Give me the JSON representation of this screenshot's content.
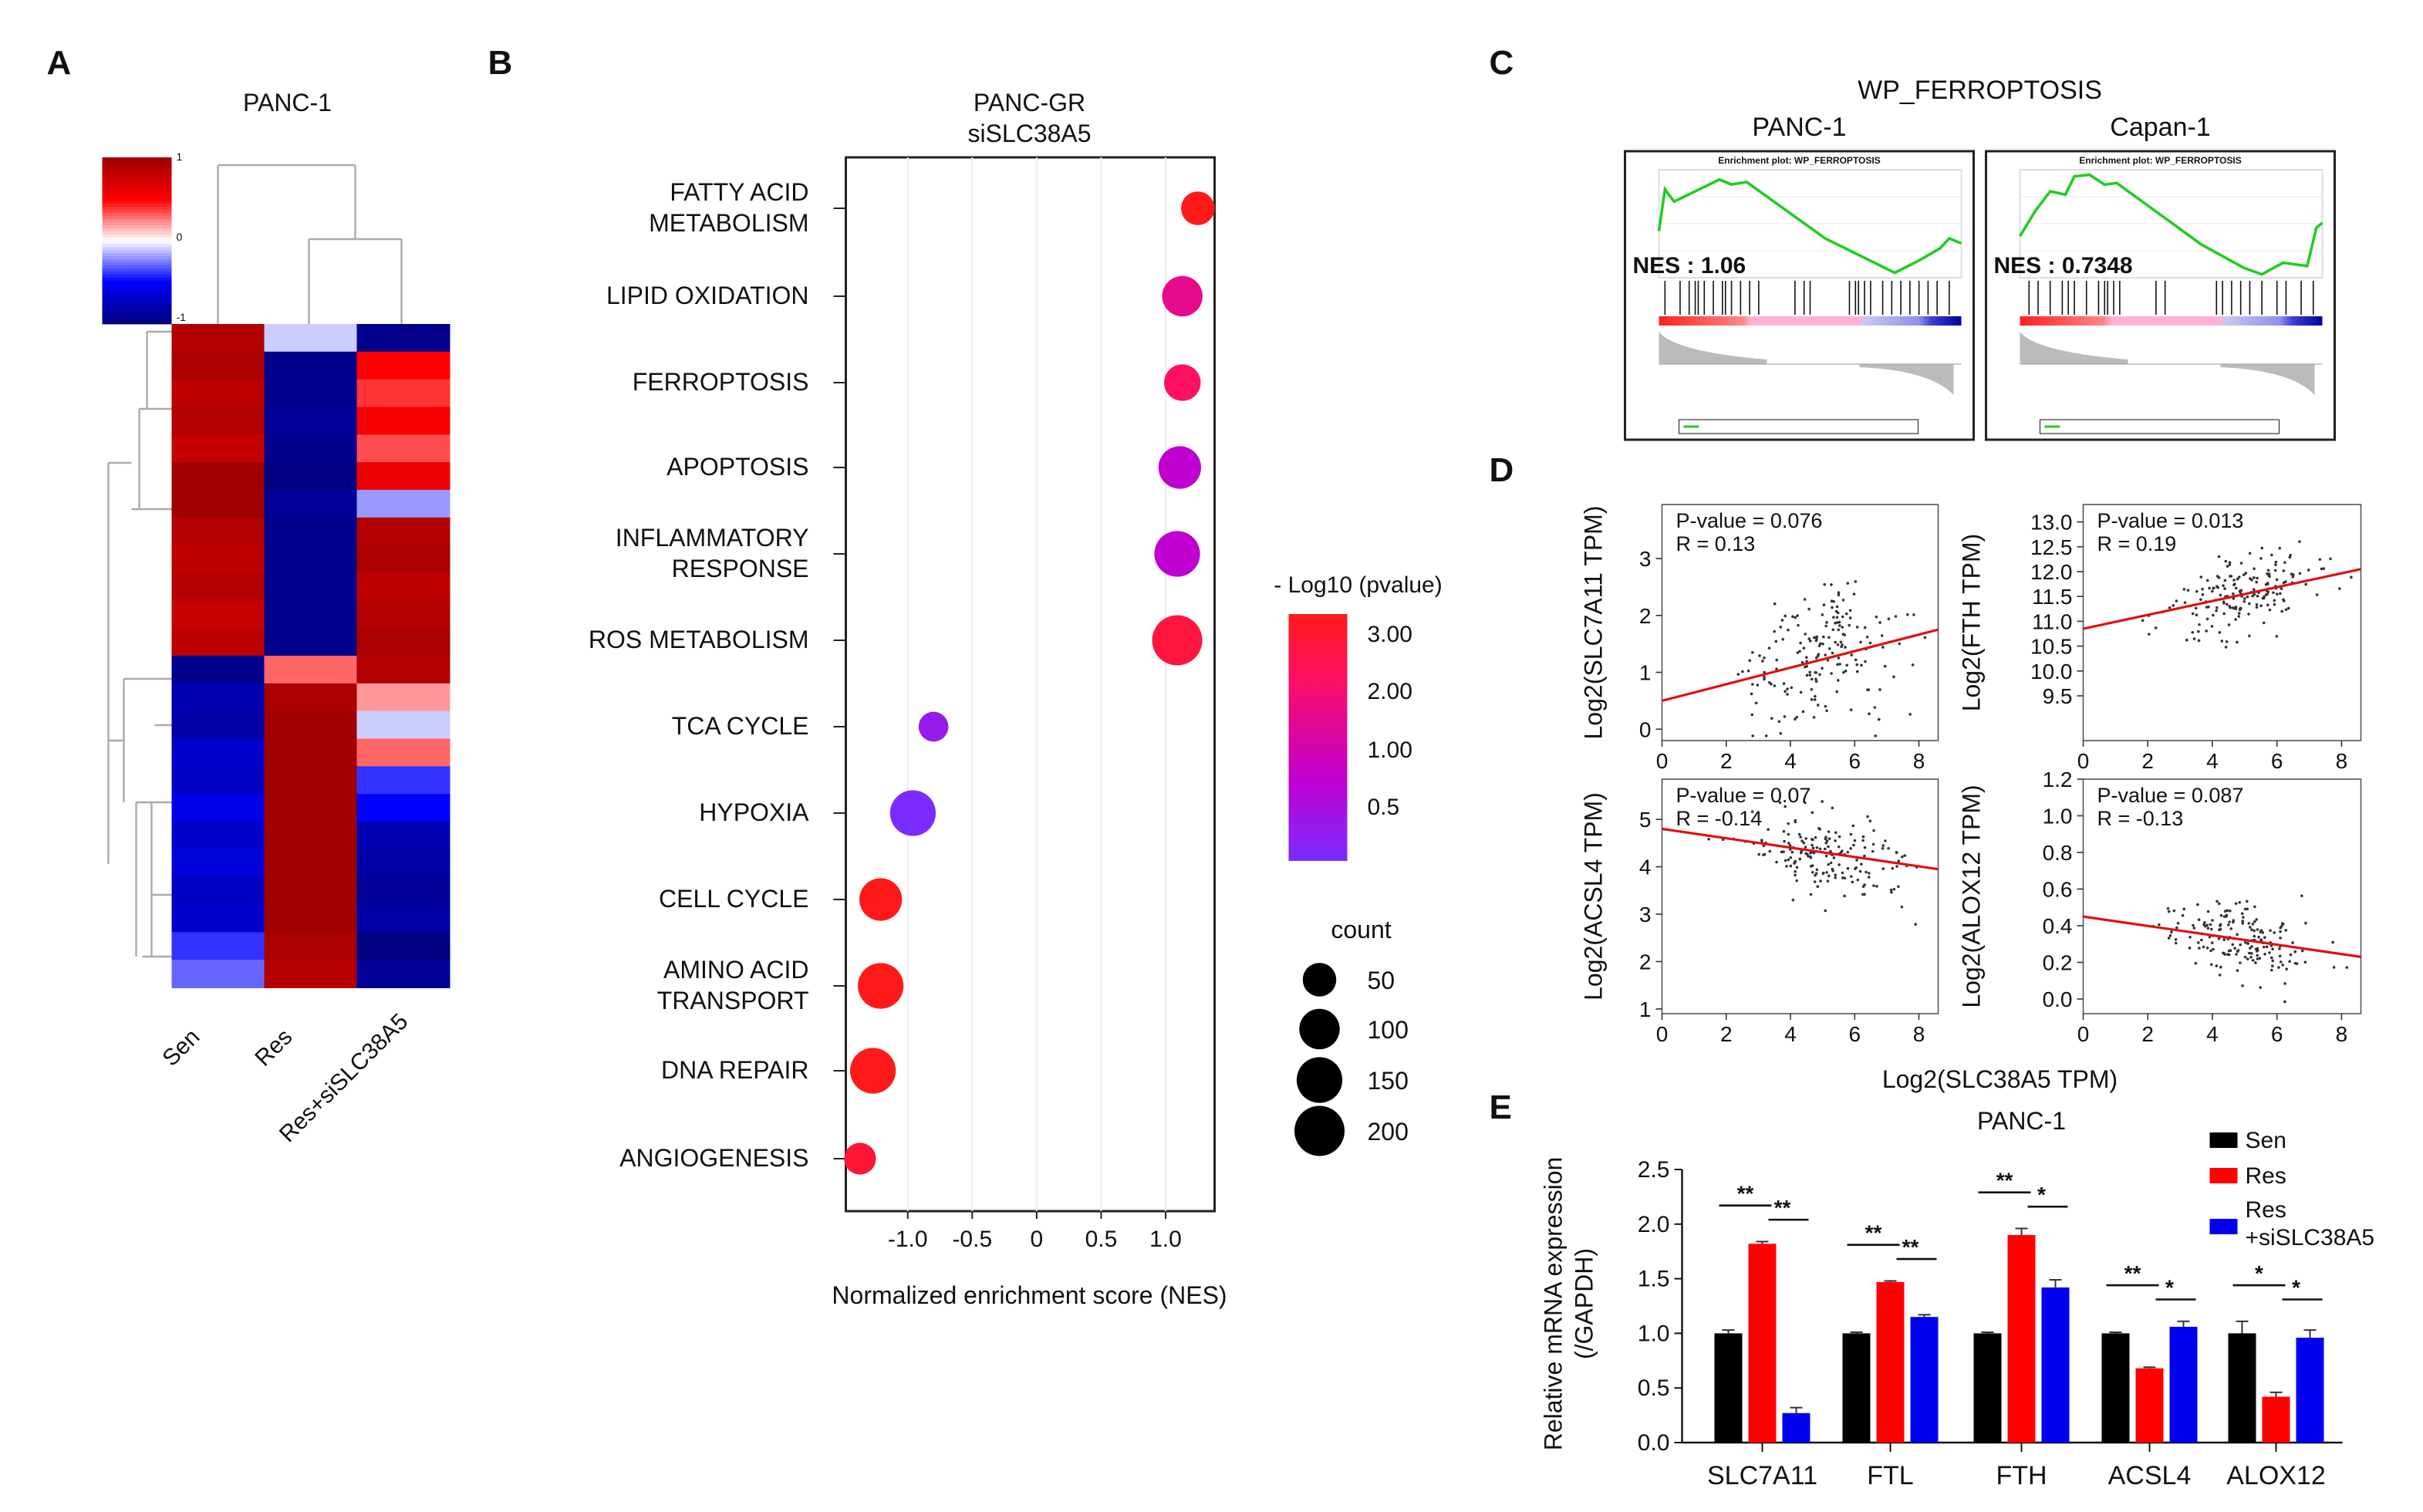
{
  "panel_letters": [
    "A",
    "B",
    "C",
    "D",
    "E"
  ],
  "chart_data": [
    {
      "panel": "A",
      "type": "heatmap",
      "title": "PANC-1",
      "columns": [
        "Sen",
        "Res",
        "Res+siSLC38A5"
      ],
      "colorbar_ticks": [
        "1",
        "0",
        "-1"
      ],
      "color_range": [
        -1,
        1
      ],
      "colors": {
        "low": "#000080",
        "mid_low": "#0000ff",
        "mid": "#ffffff",
        "mid_high": "#ff0000",
        "high": "#a00000"
      },
      "rows": [
        [
          0.9,
          -0.1,
          -0.95
        ],
        [
          0.95,
          -0.95,
          0.5
        ],
        [
          0.85,
          -0.95,
          0.4
        ],
        [
          0.9,
          -0.9,
          0.55
        ],
        [
          0.8,
          -0.95,
          0.35
        ],
        [
          1.0,
          -1.0,
          0.6
        ],
        [
          1.0,
          -0.9,
          -0.2
        ],
        [
          0.9,
          -0.95,
          0.9
        ],
        [
          0.85,
          -0.95,
          0.95
        ],
        [
          0.9,
          -0.95,
          0.85
        ],
        [
          0.8,
          -0.95,
          0.9
        ],
        [
          0.85,
          -0.95,
          0.95
        ],
        [
          -0.95,
          0.3,
          0.9
        ],
        [
          -0.8,
          0.95,
          0.2
        ],
        [
          -0.85,
          1.0,
          -0.1
        ],
        [
          -0.7,
          1.0,
          0.3
        ],
        [
          -0.75,
          1.0,
          -0.4
        ],
        [
          -0.6,
          1.0,
          -0.5
        ],
        [
          -0.7,
          1.0,
          -0.8
        ],
        [
          -0.65,
          1.0,
          -0.85
        ],
        [
          -0.75,
          1.0,
          -0.9
        ],
        [
          -0.7,
          1.0,
          -0.85
        ],
        [
          -0.4,
          0.95,
          -1.0
        ],
        [
          -0.3,
          0.9,
          -0.9
        ]
      ]
    },
    {
      "panel": "B",
      "type": "scatter",
      "title": "PANC-GR",
      "subtitle": "siSLC38A5",
      "xlabel": "Normalized enrichment score (NES)",
      "xticks": [
        -1.0,
        -0.5,
        0,
        0.5,
        1.0
      ],
      "xtick_labels": [
        "-1.0",
        "-0.5",
        "0",
        "0.5",
        "1.0"
      ],
      "xlim": [
        -1.48,
        1.38
      ],
      "color_legend_title": "- Log10 (pvalue)",
      "color_legend_labels": [
        "3.00",
        "2.00",
        "1.00",
        "0.5"
      ],
      "color_scale": [
        "#7b2bff",
        "#c000d0",
        "#ff1060",
        "#ff1a1a"
      ],
      "size_legend_title": "count",
      "size_legend": [
        50,
        100,
        150,
        200
      ],
      "points": [
        {
          "label": [
            "FATTY ACID",
            "METABOLISM"
          ],
          "nes": 1.25,
          "logp": 3.0,
          "count": 50
        },
        {
          "label": [
            "LIPID OXIDATION"
          ],
          "nes": 1.13,
          "logp": 1.6,
          "count": 100
        },
        {
          "label": [
            "FERROPTOSIS"
          ],
          "nes": 1.13,
          "logp": 2.0,
          "count": 70
        },
        {
          "label": [
            "APOPTOSIS"
          ],
          "nes": 1.11,
          "logp": 1.0,
          "count": 120
        },
        {
          "label": [
            "INFLAMMATORY",
            "RESPONSE"
          ],
          "nes": 1.09,
          "logp": 1.0,
          "count": 150
        },
        {
          "label": [
            "ROS METABOLISM"
          ],
          "nes": 1.09,
          "logp": 2.5,
          "count": 200
        },
        {
          "label": [
            "TCA CYCLE"
          ],
          "nes": -0.8,
          "logp": 0.5,
          "count": 30
        },
        {
          "label": [
            "HYPOXIA"
          ],
          "nes": -0.96,
          "logp": 0.2,
          "count": 150
        },
        {
          "label": [
            "CELL CYCLE"
          ],
          "nes": -1.21,
          "logp": 3.0,
          "count": 120
        },
        {
          "label": [
            "AMINO ACID",
            "TRANSPORT"
          ],
          "nes": -1.21,
          "logp": 3.0,
          "count": 150
        },
        {
          "label": [
            "DNA REPAIR"
          ],
          "nes": -1.27,
          "logp": 3.0,
          "count": 150
        },
        {
          "label": [
            "ANGIOGENESIS"
          ],
          "nes": -1.37,
          "logp": 2.6,
          "count": 40
        }
      ]
    },
    {
      "panel": "C",
      "type": "line",
      "title": "WP_FERROPTOSIS",
      "plots": [
        {
          "name": "PANC-1",
          "plot_title": "Enrichment plot: WP_FERROPTOSIS",
          "nes_text": "NES : 1.06",
          "ylim": [
            -0.14,
            0.3
          ],
          "curve": [
            [
              0,
              0.05
            ],
            [
              0.02,
              0.22
            ],
            [
              0.05,
              0.17
            ],
            [
              0.1,
              0.2
            ],
            [
              0.2,
              0.26
            ],
            [
              0.24,
              0.24
            ],
            [
              0.29,
              0.25
            ],
            [
              0.55,
              0.02
            ],
            [
              0.78,
              -0.12
            ],
            [
              0.86,
              -0.07
            ],
            [
              0.93,
              -0.02
            ],
            [
              0.96,
              0.02
            ],
            [
              1.0,
              0.0
            ]
          ],
          "hits": [
            0.02,
            0.07,
            0.1,
            0.12,
            0.13,
            0.15,
            0.18,
            0.21,
            0.22,
            0.24,
            0.27,
            0.3,
            0.33,
            0.45,
            0.48,
            0.5,
            0.63,
            0.65,
            0.66,
            0.68,
            0.7,
            0.74,
            0.77,
            0.8,
            0.83,
            0.86,
            0.89,
            0.92,
            0.96
          ]
        },
        {
          "name": "Capan-1",
          "plot_title": "Enrichment plot: WP_FERROPTOSIS",
          "nes_text": "NES : 0.7348",
          "ylim": [
            -0.3,
            0.35
          ],
          "curve": [
            [
              0,
              -0.05
            ],
            [
              0.05,
              0.1
            ],
            [
              0.1,
              0.22
            ],
            [
              0.15,
              0.2
            ],
            [
              0.18,
              0.31
            ],
            [
              0.23,
              0.32
            ],
            [
              0.28,
              0.26
            ],
            [
              0.32,
              0.27
            ],
            [
              0.6,
              -0.1
            ],
            [
              0.74,
              -0.24
            ],
            [
              0.8,
              -0.28
            ],
            [
              0.87,
              -0.21
            ],
            [
              0.95,
              -0.23
            ],
            [
              0.98,
              0.0
            ],
            [
              1.0,
              0.03
            ]
          ],
          "hits": [
            0.03,
            0.06,
            0.1,
            0.14,
            0.16,
            0.18,
            0.22,
            0.26,
            0.28,
            0.29,
            0.31,
            0.33,
            0.45,
            0.48,
            0.65,
            0.67,
            0.7,
            0.73,
            0.76,
            0.8,
            0.85,
            0.88,
            0.93,
            0.97
          ]
        }
      ]
    },
    {
      "panel": "D",
      "type": "scatter",
      "xlabel": "Log2(SLC38A5 TPM)",
      "xlim": [
        0,
        8.6
      ],
      "xticks": [
        0,
        2,
        4,
        6,
        8
      ],
      "plots": [
        {
          "ylabel": "Log2(SLC7A11 TPM)",
          "pvalue_text": "P-value = 0.076",
          "r_text": "R = 0.13",
          "ylim": [
            -0.2,
            3.95
          ],
          "yticks": [
            0,
            1,
            2,
            3
          ],
          "ytick_labels": [
            "0",
            "1",
            "2",
            "3"
          ],
          "fit": [
            [
              0,
              0.5
            ],
            [
              8.6,
              1.75
            ]
          ]
        },
        {
          "ylabel": "Log2(FTH TPM)",
          "pvalue_text": "P-value = 0.013",
          "r_text": "R = 0.19",
          "ylim": [
            8.6,
            13.35
          ],
          "yticks": [
            9.5,
            10,
            10.5,
            11,
            11.5,
            12,
            12.5,
            13
          ],
          "ytick_labels": [
            "9.5",
            "10.0",
            "10.5",
            "11.0",
            "11.5",
            "12.0",
            "12.5",
            "13.0"
          ],
          "fit": [
            [
              0,
              10.85
            ],
            [
              8.6,
              12.05
            ]
          ]
        },
        {
          "ylabel": "Log2(ACSL4 TPM)",
          "pvalue_text": "P-value = 0.07",
          "r_text": "R = -0.14",
          "ylim": [
            0.9,
            5.85
          ],
          "yticks": [
            1,
            2,
            3,
            4,
            5
          ],
          "ytick_labels": [
            "1",
            "2",
            "3",
            "4",
            "5"
          ],
          "fit": [
            [
              0,
              4.8
            ],
            [
              8.6,
              3.95
            ]
          ]
        },
        {
          "ylabel": "Log2(ALOX12 TPM)",
          "pvalue_text": "P-value = 0.087",
          "r_text": "R = -0.13",
          "ylim": [
            -0.08,
            1.2
          ],
          "yticks": [
            0,
            0.2,
            0.4,
            0.6,
            0.8,
            1.0,
            1.2
          ],
          "ytick_labels": [
            "0.0",
            "0.2",
            "0.4",
            "0.6",
            "0.8",
            "1.0",
            "1.2"
          ],
          "fit": [
            [
              0,
              0.45
            ],
            [
              8.6,
              0.23
            ]
          ]
        }
      ]
    },
    {
      "panel": "E",
      "type": "bar",
      "title": "PANC-1",
      "ylabel": [
        "Relative mRNA expression",
        "(/GAPDH)"
      ],
      "ylim": [
        0,
        2.5
      ],
      "yticks": [
        "0.0",
        "0.5",
        "1.0",
        "1.5",
        "2.0",
        "2.5"
      ],
      "categories": [
        "SLC7A11",
        "FTL",
        "FTH",
        "ACSL4",
        "ALOX12"
      ],
      "legend": [
        [
          "Sen"
        ],
        [
          "Res"
        ],
        [
          "Res",
          "+siSLC38A5"
        ]
      ],
      "series": [
        {
          "name": "Sen",
          "color": "#000000",
          "values": [
            1.0,
            1.0,
            1.0,
            1.0,
            1.0
          ],
          "errors": [
            0.03,
            0.01,
            0.01,
            0.01,
            0.11
          ]
        },
        {
          "name": "Res",
          "color": "#ff0000",
          "values": [
            1.82,
            1.47,
            1.9,
            0.68,
            0.42
          ],
          "errors": [
            0.02,
            0.01,
            0.06,
            0.01,
            0.04
          ]
        },
        {
          "name": "Res+siSLC38A5",
          "color": "#0000ee",
          "values": [
            0.27,
            1.15,
            1.42,
            1.06,
            0.96
          ],
          "errors": [
            0.05,
            0.02,
            0.07,
            0.05,
            0.07
          ]
        }
      ],
      "significance": [
        [
          "**",
          "**"
        ],
        [
          "**",
          "**"
        ],
        [
          "**",
          "*"
        ],
        [
          "**",
          "*"
        ],
        [
          "*",
          "*"
        ]
      ]
    }
  ]
}
